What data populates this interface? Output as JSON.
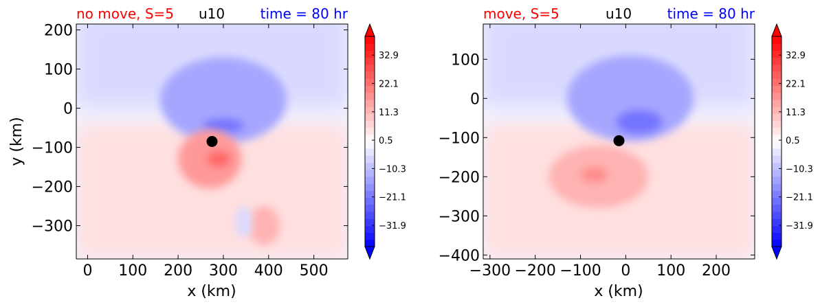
{
  "chart_data": [
    {
      "type": "heatmap",
      "title_left": "no move, S=5",
      "title_center": "u10",
      "title_right": "time = 80 hr",
      "title_left_color": "#ff0000",
      "title_center_color": "#000000",
      "title_right_color": "#0000ff",
      "xlabel": "x (km)",
      "ylabel": "y (km)",
      "xlim": [
        -25,
        575
      ],
      "ylim": [
        -385,
        215
      ],
      "xticks": [
        0,
        100,
        200,
        300,
        400,
        500
      ],
      "xtick_labels": [
        "0",
        "100",
        "200",
        "300",
        "400",
        "500"
      ],
      "yticks": [
        200,
        100,
        0,
        -100,
        -200,
        -300
      ],
      "ytick_labels": [
        "200",
        "100",
        "0",
        "−100",
        "−200",
        "−300"
      ],
      "storm_center": {
        "x": 275,
        "y": -85
      },
      "field_features": [
        {
          "kind": "negative",
          "x": 300,
          "y": 20,
          "rx": 140,
          "ry": 110,
          "level": -14
        },
        {
          "kind": "negative",
          "x": 300,
          "y": -45,
          "rx": 45,
          "ry": 18,
          "level": -22
        },
        {
          "kind": "positive",
          "x": 270,
          "y": -130,
          "rx": 70,
          "ry": 75,
          "level": 16
        },
        {
          "kind": "positive",
          "x": 290,
          "y": -130,
          "rx": 25,
          "ry": 20,
          "level": 24
        },
        {
          "kind": "positive",
          "x": 390,
          "y": -300,
          "rx": 35,
          "ry": 50,
          "level": 12
        },
        {
          "kind": "negative",
          "x": 345,
          "y": -290,
          "rx": 18,
          "ry": 40,
          "level": -6
        }
      ],
      "colorbar": {
        "ticks": [
          32.9,
          22.1,
          11.3,
          0.5,
          -10.3,
          -21.1,
          -31.9
        ],
        "tick_labels": [
          "32.9",
          "22.1",
          "11.3",
          "0.5",
          "−10.3",
          "−21.1",
          "−31.9"
        ],
        "range": [
          -40,
          40
        ],
        "cmap": "bwr",
        "extend": "both"
      }
    },
    {
      "type": "heatmap",
      "title_left": "move, S=5",
      "title_center": "u10",
      "title_right": "time = 80 hr",
      "title_left_color": "#ff0000",
      "title_center_color": "#000000",
      "title_right_color": "#0000ff",
      "xlabel": "x (km)",
      "ylabel": "",
      "xlim": [
        -315,
        285
      ],
      "ylim": [
        -410,
        190
      ],
      "xticks": [
        -300,
        -200,
        -100,
        0,
        100,
        200
      ],
      "xtick_labels": [
        "−300",
        "−200",
        "−100",
        "0",
        "100",
        "200"
      ],
      "yticks": [
        100,
        0,
        -100,
        -200,
        -300,
        -400
      ],
      "ytick_labels": [
        "100",
        "0",
        "−100",
        "−200",
        "−300",
        "−400"
      ],
      "storm_center": {
        "x": -15,
        "y": -108
      },
      "field_features": [
        {
          "kind": "negative",
          "x": 10,
          "y": 0,
          "rx": 140,
          "ry": 110,
          "level": -14
        },
        {
          "kind": "negative",
          "x": 30,
          "y": -60,
          "rx": 50,
          "ry": 30,
          "level": -22
        },
        {
          "kind": "positive",
          "x": -60,
          "y": -200,
          "rx": 110,
          "ry": 80,
          "level": 12
        },
        {
          "kind": "positive",
          "x": -70,
          "y": -195,
          "rx": 30,
          "ry": 20,
          "level": 18
        }
      ],
      "colorbar": {
        "ticks": [
          32.9,
          22.1,
          11.3,
          0.5,
          -10.3,
          -21.1,
          -31.9
        ],
        "tick_labels": [
          "32.9",
          "22.1",
          "11.3",
          "0.5",
          "−10.3",
          "−21.1",
          "−31.9"
        ],
        "range": [
          -40,
          40
        ],
        "cmap": "bwr",
        "extend": "both"
      }
    }
  ]
}
